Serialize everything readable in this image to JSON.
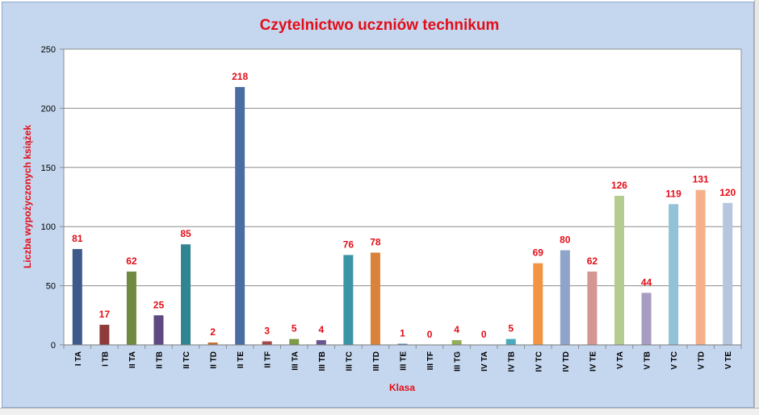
{
  "chart_data": {
    "type": "bar",
    "title": "Czytelnictwo uczniów technikum",
    "xlabel": "Klasa",
    "ylabel": "Liczba wypożyczonych książek",
    "ylim": [
      0,
      250
    ],
    "yticks": [
      0,
      50,
      100,
      150,
      200,
      250
    ],
    "grid": true,
    "legend": "none",
    "categories": [
      "I TA",
      "I TB",
      "II TA",
      "II TB",
      "II TC",
      "II TD",
      "II TE",
      "II TF",
      "III TA",
      "III TB",
      "III TC",
      "III TD",
      "III TE",
      "III TF",
      "III TG",
      "IV TA",
      "IV TB",
      "IV TC",
      "IV TD",
      "IV TE",
      "V TA",
      "V TB",
      "V TC",
      "V TD",
      "V TE"
    ],
    "values": [
      81,
      17,
      62,
      25,
      85,
      2,
      218,
      3,
      5,
      4,
      76,
      78,
      1,
      0,
      4,
      0,
      5,
      69,
      80,
      62,
      126,
      44,
      119,
      131,
      120
    ],
    "colors": [
      "#3d5a8a",
      "#8e3b3b",
      "#6f8a3f",
      "#5e4a80",
      "#338492",
      "#c46d2c",
      "#4a6ea3",
      "#a54848",
      "#7e9a45",
      "#6a5590",
      "#3a94a5",
      "#d98239",
      "#5a81b8",
      "#b95757",
      "#93ae56",
      "#7a66a3",
      "#4aa9bb",
      "#f29443",
      "#8ea4c8",
      "#d49593",
      "#b5cc91",
      "#a79cc1",
      "#92c2d7",
      "#f6b089",
      "#b7c6df"
    ]
  }
}
